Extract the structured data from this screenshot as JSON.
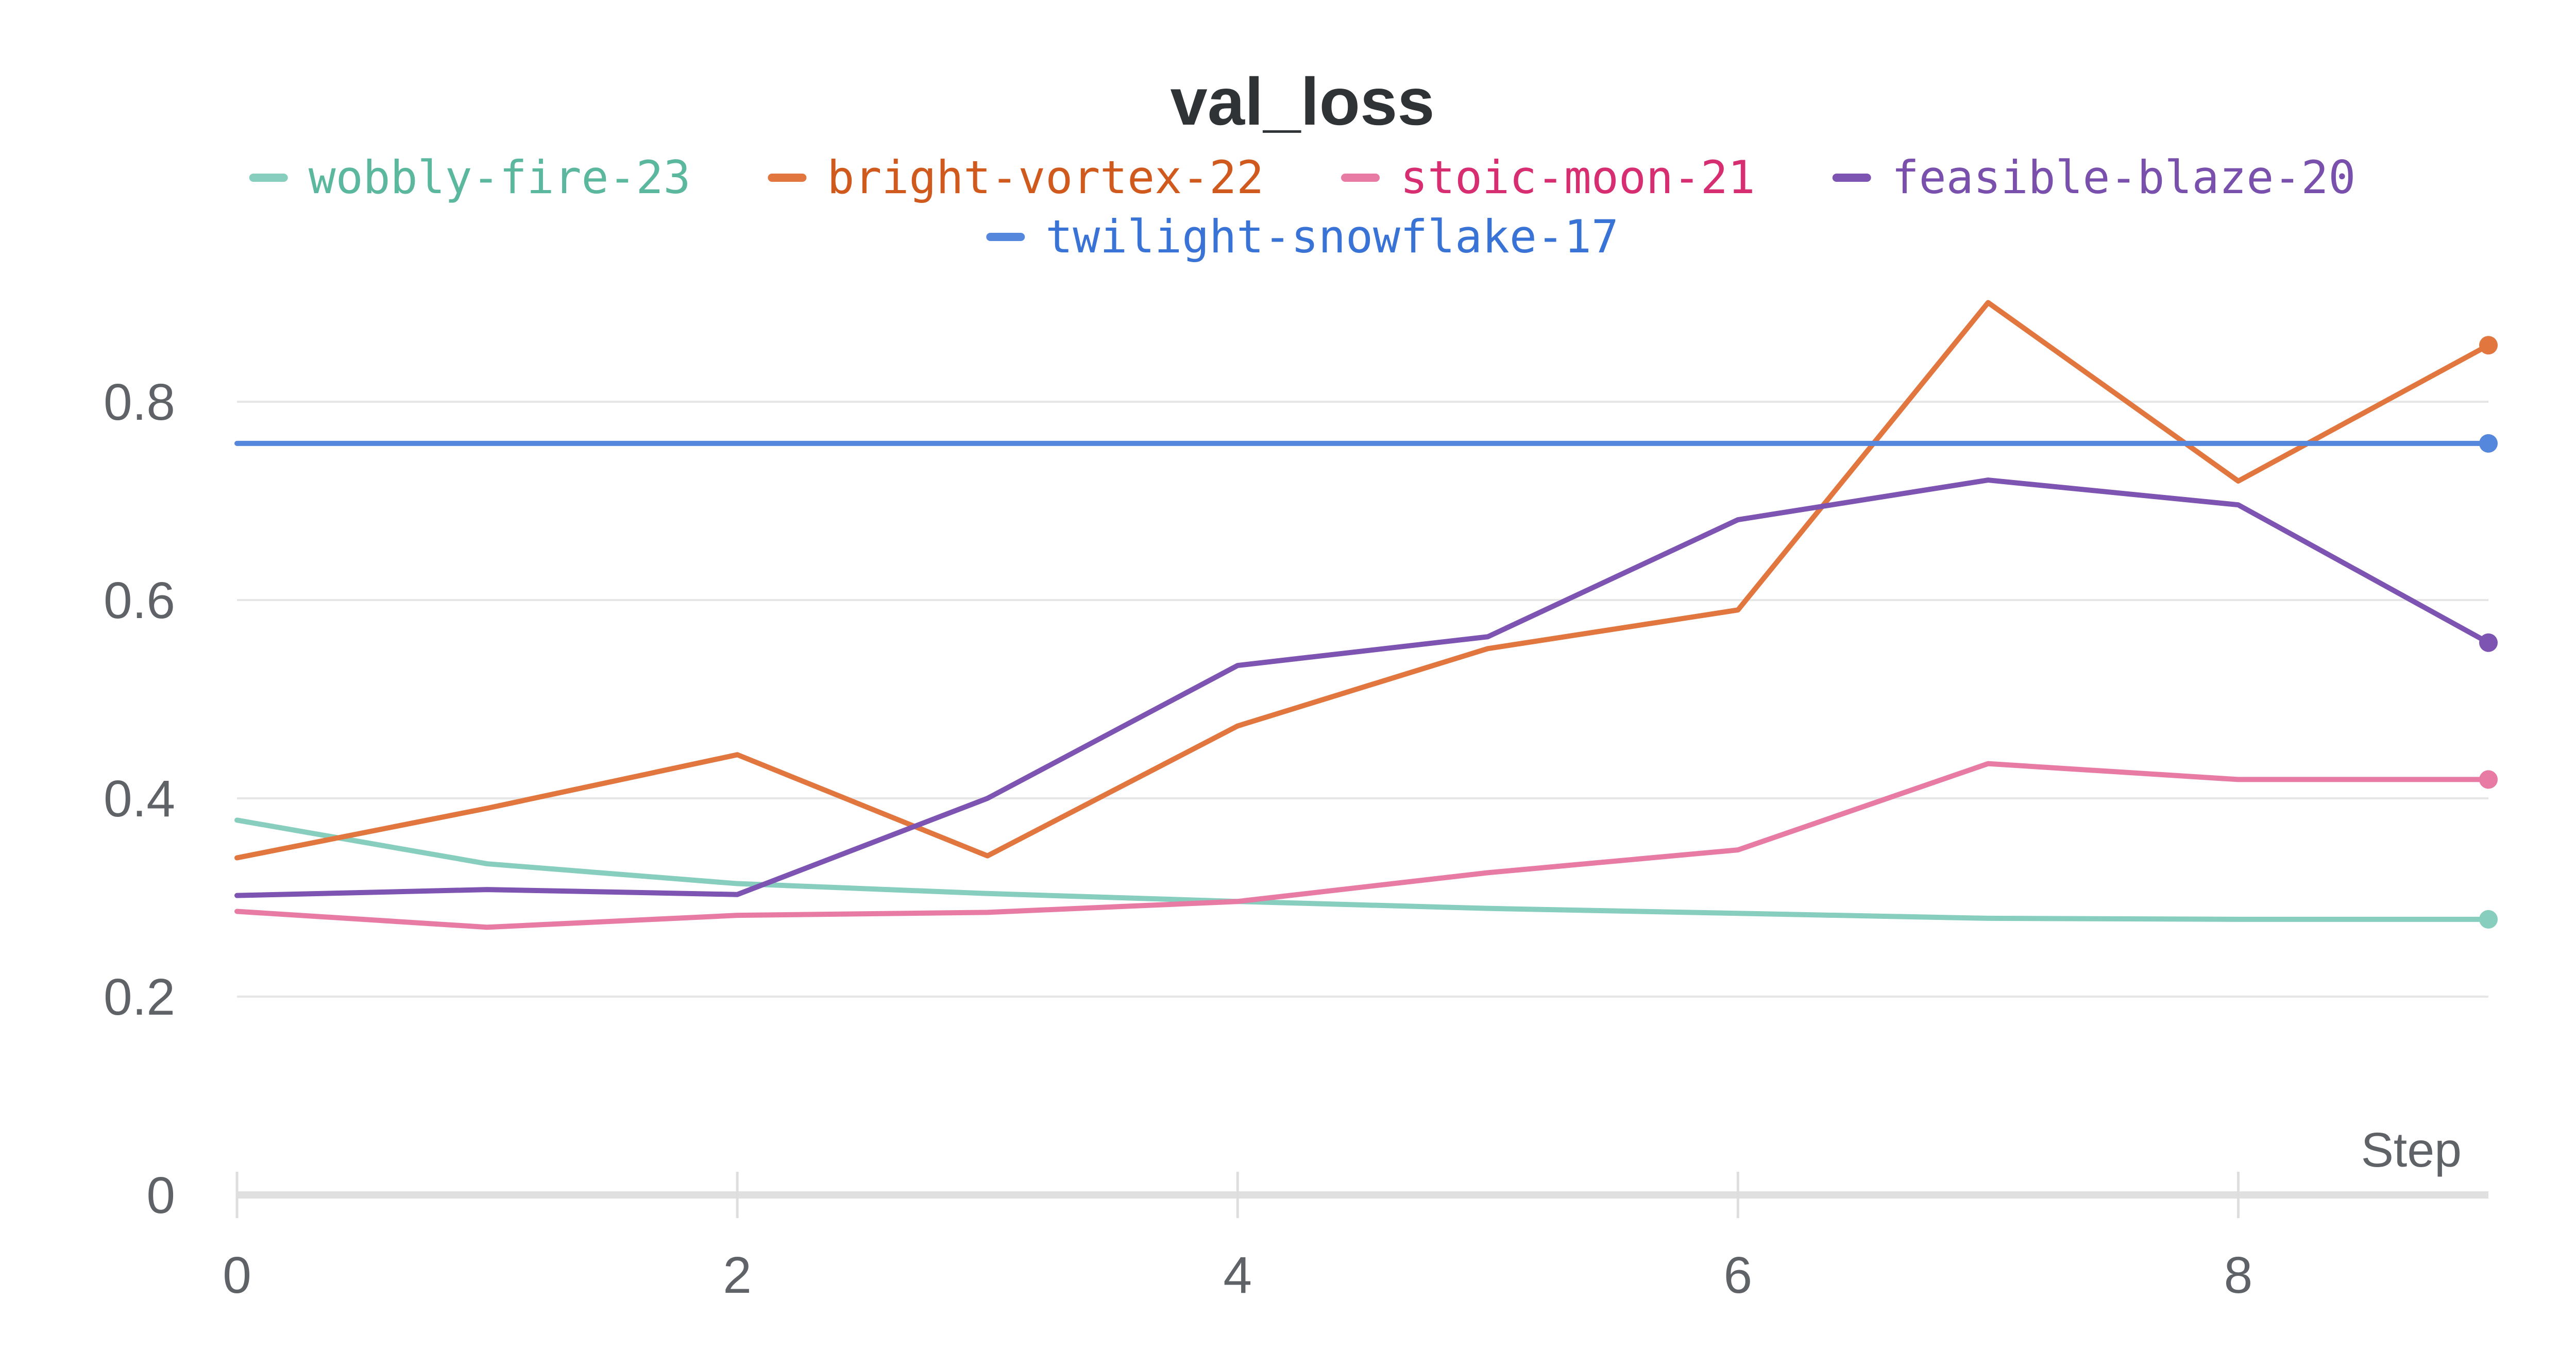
{
  "chart_data": {
    "type": "line",
    "title": "val_loss",
    "xlabel": "Step",
    "ylabel": "",
    "xlim": [
      0,
      9
    ],
    "ylim": [
      0,
      0.93
    ],
    "x_ticks": [
      "0",
      "2",
      "4",
      "6",
      "8"
    ],
    "y_ticks": [
      "0",
      "0.2",
      "0.4",
      "0.6",
      "0.8"
    ],
    "grid": true,
    "legend_position": "top-center",
    "x": [
      0,
      1,
      2,
      3,
      4,
      5,
      6,
      7,
      8,
      9
    ],
    "series": [
      {
        "name": "wobbly-fire-23",
        "color": "#87cebf",
        "legend_color": "#5bb89e",
        "values": [
          0.378,
          0.334,
          0.314,
          0.304,
          0.296,
          0.289,
          0.284,
          0.279,
          0.278,
          0.278
        ]
      },
      {
        "name": "bright-vortex-22",
        "color": "#e2763f",
        "legend_color": "#d05a1d",
        "values": [
          0.34,
          0.39,
          0.444,
          0.342,
          0.473,
          0.551,
          0.59,
          0.9,
          0.72,
          0.857
        ]
      },
      {
        "name": "stoic-moon-21",
        "color": "#e87ba4",
        "legend_color": "#d62e71",
        "values": [
          0.286,
          0.27,
          0.282,
          0.285,
          0.296,
          0.325,
          0.348,
          0.435,
          0.419,
          0.419
        ]
      },
      {
        "name": "feasible-blaze-20",
        "color": "#7d54b2",
        "legend_color": "#7a50ad",
        "values": [
          0.302,
          0.308,
          0.303,
          0.4,
          0.534,
          0.563,
          0.681,
          0.721,
          0.696,
          0.557
        ]
      },
      {
        "name": "twilight-snowflake-17",
        "color": "#5587dc",
        "legend_color": "#3a73d6",
        "values": [
          0.758,
          0.758,
          0.758,
          0.758,
          0.758,
          0.758,
          0.758,
          0.758,
          0.758,
          0.758
        ]
      }
    ]
  }
}
